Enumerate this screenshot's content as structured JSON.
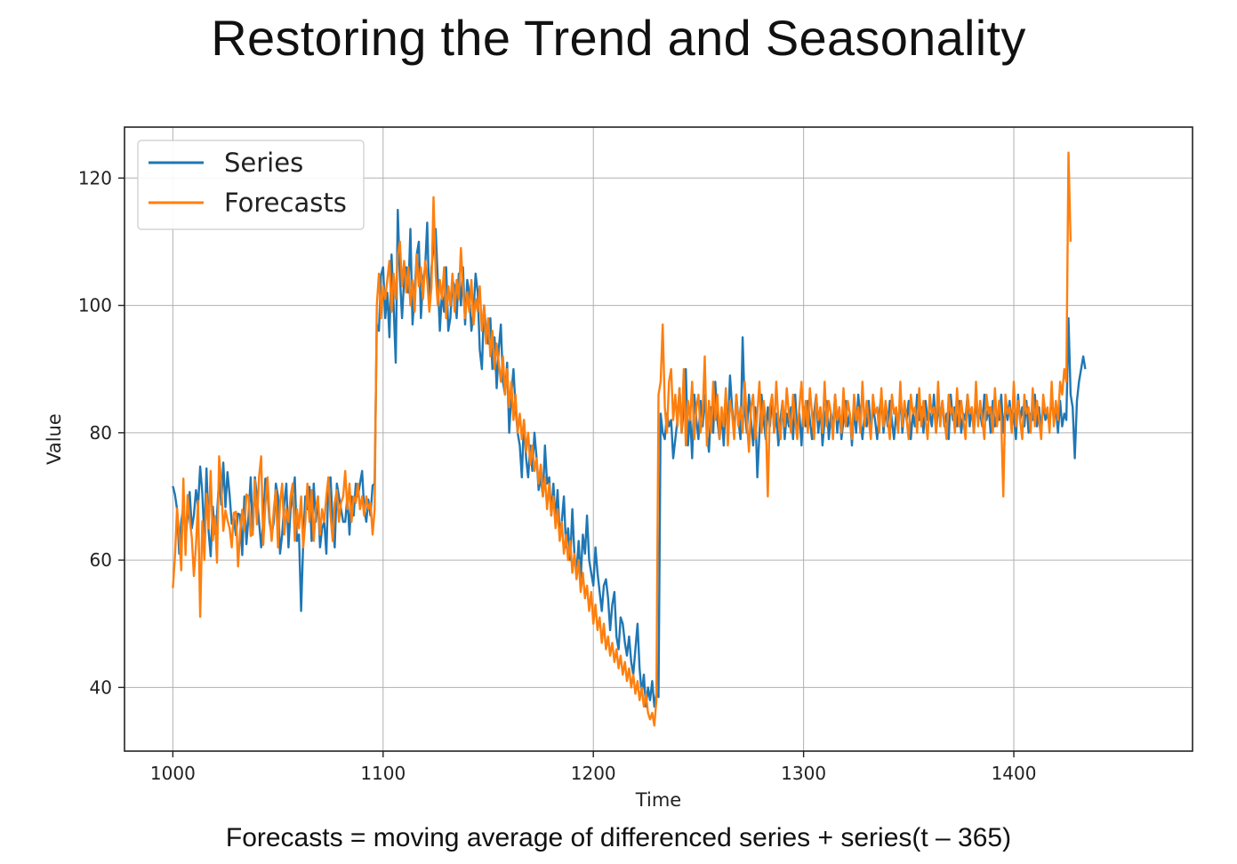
{
  "slide": {
    "title": "Restoring the Trend and Seasonality",
    "caption": "Forecasts = moving average of differenced series + series(t – 365)"
  },
  "chart_data": {
    "type": "line",
    "xlabel": "Time",
    "ylabel": "Value",
    "xlim": [
      977,
      1485
    ],
    "ylim": [
      30,
      128
    ],
    "xticks": [
      1000,
      1100,
      1200,
      1300,
      1400
    ],
    "yticks": [
      40,
      60,
      80,
      100,
      120
    ],
    "grid": true,
    "legend": {
      "placement": "top-left",
      "entries": [
        "Series",
        "Forecasts"
      ]
    },
    "series": [
      {
        "name": "Series",
        "color": "#1f77b4",
        "x_start": 1000,
        "x_step": 1,
        "values": [
          71.6,
          70.3,
          68.0,
          61.0,
          66.0,
          68.4,
          63.4,
          66.8,
          70.7,
          65.0,
          67.0,
          71.0,
          68.4,
          74.7,
          70.5,
          63.4,
          74.4,
          64.5,
          60.6,
          68.4,
          64.1,
          67.1,
          72.8,
          68.7,
          75.3,
          68.3,
          73.8,
          70.2,
          65.7,
          66.5,
          63.9,
          67.3,
          67.1,
          60.8,
          70.0,
          62.5,
          67.0,
          73.0,
          64.0,
          73.0,
          70.0,
          66.0,
          62.0,
          66.0,
          72.8,
          71.0,
          66.0,
          64.0,
          66.0,
          72.0,
          70.0,
          61.0,
          64.0,
          69.0,
          72.0,
          62.0,
          68.0,
          70.0,
          73.0,
          63.0,
          64.0,
          52.0,
          63.0,
          70.0,
          68.0,
          71.5,
          63.0,
          72.0,
          66.0,
          70.0,
          62.0,
          65.0,
          66.0,
          61.0,
          72.0,
          73.0,
          66.0,
          62.0,
          72.0,
          70.0,
          68.0,
          66.0,
          66.0,
          70.0,
          64.0,
          70.0,
          67.0,
          72.0,
          70.0,
          72.0,
          74.0,
          68.0,
          66.0,
          69.5,
          67.0,
          71.7,
          72.0,
          97.0,
          96.0,
          104.7,
          106.0,
          98.0,
          102.0,
          95.0,
          108.0,
          100.0,
          91.0,
          115.0,
          104.5,
          98.0,
          104.0,
          106.0,
          102.0,
          112.0,
          97.0,
          102.0,
          108.0,
          110.0,
          98.0,
          104.0,
          106.0,
          113.0,
          100.0,
          106.0,
          109.0,
          112.0,
          104.0,
          96.0,
          102.0,
          99.0,
          106.0,
          96.0,
          98.0,
          104.0,
          103.0,
          98.0,
          105.0,
          100.0,
          106.0,
          97.0,
          104.0,
          102.0,
          96.0,
          99.0,
          105.0,
          102.0,
          93.0,
          90.0,
          100.0,
          96.0,
          94.0,
          98.0,
          90.0,
          95.0,
          87.0,
          93.0,
          97.0,
          88.0,
          86.0,
          91.0,
          80.0,
          86.0,
          90.0,
          84.0,
          80.0,
          78.0,
          73.0,
          82.0,
          76.0,
          73.0,
          78.0,
          74.0,
          80.0,
          76.0,
          71.0,
          73.0,
          70.0,
          78.0,
          72.0,
          73.0,
          67.0,
          72.0,
          66.0,
          71.0,
          64.0,
          66.0,
          70.0,
          62.0,
          65.0,
          60.0,
          68.0,
          61.0,
          58.0,
          63.0,
          57.0,
          64.0,
          61.0,
          67.0,
          60.0,
          58.0,
          56.0,
          62.0,
          58.0,
          55.0,
          52.0,
          56.0,
          57.0,
          54.0,
          49.0,
          53.0,
          55.0,
          48.0,
          46.0,
          51.0,
          50.0,
          47.0,
          45.0,
          48.0,
          44.0,
          42.0,
          46.0,
          50.0,
          43.0,
          39.0,
          42.0,
          37.0,
          40.0,
          38.0,
          41.0,
          37.0,
          39.0,
          38.5,
          83.0,
          80.0,
          79.0,
          83.0,
          81.0,
          82.0,
          76.0,
          79.0,
          82.0,
          87.0,
          80.0,
          84.0,
          90.0,
          78.0,
          83.0,
          76.0,
          86.0,
          82.0,
          79.0,
          85.0,
          81.0,
          86.0,
          80.0,
          77.0,
          84.0,
          80.0,
          88.0,
          82.0,
          79.0,
          83.0,
          78.0,
          85.0,
          81.0,
          89.0,
          84.0,
          80.0,
          86.0,
          82.0,
          79.0,
          95.0,
          84.0,
          80.0,
          86.0,
          82.0,
          78.0,
          84.0,
          73.0,
          80.0,
          86.0,
          82.0,
          79.0,
          84.0,
          81.0,
          86.0,
          80.0,
          83.0,
          78.0,
          82.0,
          85.0,
          79.0,
          83.0,
          81.0,
          84.0,
          79.0,
          86.0,
          80.0,
          83.0,
          78.0,
          84.0,
          81.0,
          85.0,
          82.0,
          79.0,
          83.0,
          86.0,
          80.0,
          84.0,
          78.0,
          82.0,
          85.0,
          79.0,
          83.0,
          81.0,
          86.0,
          80.0,
          84.0,
          79.0,
          82.0,
          85.0,
          81.0,
          83.0,
          78.0,
          84.0,
          80.0,
          86.0,
          82.0,
          79.0,
          83.0,
          81.0,
          85.0,
          80.0,
          84.0,
          82.0,
          79.0,
          83.0,
          86.0,
          80.0,
          84.0,
          81.0,
          85.0,
          82.0,
          79.0,
          83.0,
          81.0,
          86.0,
          80.0,
          84.0,
          82.0,
          85.0,
          79.0,
          83.0,
          81.0,
          86.0,
          82.0,
          84.0,
          80.0,
          85.0,
          82.0,
          83.0,
          81.0,
          86.0,
          80.0,
          84.0,
          82.0,
          85.0,
          81.0,
          83.0,
          79.0,
          86.0,
          82.0,
          84.0,
          81.0,
          85.0,
          80.0,
          83.0,
          82.0,
          86.0,
          81.0,
          84.0,
          80.0,
          85.0,
          82.0,
          83.0,
          81.0,
          86.0,
          82.0,
          84.0,
          80.0,
          85.0,
          81.0,
          83.0,
          82.0,
          86.0,
          80.0,
          84.0,
          82.0,
          85.0,
          81.0,
          83.0,
          79.0,
          86.0,
          82.0,
          84.0,
          81.0,
          85.0,
          80.0,
          83.0,
          82.0,
          86.0,
          81.0,
          84.0,
          80.0,
          85.0,
          82.0,
          83.0,
          81.0,
          86.0,
          82.0,
          84.0,
          80.0,
          85.0,
          81.0,
          83.0,
          82.0,
          98.0,
          86.0,
          84.0,
          76.0,
          85.0,
          88.0,
          90.0,
          92.0,
          90.0
        ]
      },
      {
        "name": "Forecasts",
        "color": "#ff7f0e",
        "x_start": 1000,
        "x_step": 1,
        "values": [
          55.6,
          60.5,
          68.1,
          64.0,
          58.4,
          72.8,
          60.8,
          70.2,
          66.5,
          63.5,
          57.5,
          62.4,
          69.3,
          51.1,
          66.1,
          60.0,
          70.4,
          65.0,
          74.0,
          63.1,
          66.9,
          59.6,
          76.3,
          72.0,
          64.6,
          67.8,
          66.3,
          65.0,
          62.0,
          67.4,
          67.6,
          59.0,
          64.4,
          67.9,
          64.6,
          70.3,
          70.0,
          63.8,
          64.0,
          72.6,
          65.6,
          73.1,
          76.3,
          62.4,
          68.8,
          73.0,
          67.0,
          63.0,
          68.0,
          71.0,
          62.0,
          69.0,
          72.0,
          64.0,
          68.0,
          66.0,
          70.0,
          72.0,
          63.0,
          68.0,
          65.0,
          70.0,
          62.0,
          66.0,
          72.0,
          66.0,
          71.0,
          63.0,
          68.0,
          70.0,
          64.0,
          68.0,
          66.0,
          70.0,
          73.0,
          67.0,
          63.0,
          69.0,
          71.0,
          66.0,
          69.0,
          70.0,
          74.0,
          68.0,
          72.0,
          66.0,
          70.0,
          69.0,
          72.0,
          68.0,
          70.0,
          67.0,
          70.0,
          68.0,
          69.0,
          64.0,
          68.0,
          100.0,
          105.0,
          98.0,
          103.0,
          101.0,
          104.0,
          107.0,
          99.0,
          105.0,
          101.0,
          108.0,
          110.0,
          103.0,
          107.0,
          102.0,
          106.0,
          100.0,
          104.0,
          99.0,
          108.0,
          103.0,
          106.0,
          101.0,
          107.0,
          104.0,
          99.0,
          103.0,
          117.0,
          105.0,
          100.0,
          104.0,
          101.0,
          106.0,
          98.0,
          103.0,
          100.0,
          105.0,
          99.0,
          104.0,
          101.0,
          109.0,
          103.0,
          98.0,
          102.0,
          99.0,
          104.0,
          97.0,
          101.0,
          99.0,
          103.0,
          96.0,
          100.0,
          94.0,
          98.0,
          92.0,
          96.0,
          90.0,
          94.0,
          91.0,
          88.0,
          92.0,
          86.0,
          90.0,
          84.0,
          88.0,
          82.0,
          86.0,
          80.0,
          83.0,
          79.0,
          82.0,
          77.0,
          80.0,
          75.0,
          78.0,
          74.0,
          76.0,
          72.0,
          75.0,
          70.0,
          73.0,
          68.0,
          72.0,
          67.0,
          70.0,
          65.0,
          68.0,
          63.0,
          66.0,
          61.0,
          64.0,
          60.0,
          63.0,
          58.0,
          61.0,
          57.0,
          60.0,
          55.0,
          58.0,
          54.0,
          56.0,
          52.0,
          55.0,
          50.0,
          53.0,
          49.0,
          51.0,
          47.0,
          50.0,
          46.0,
          48.0,
          45.0,
          47.0,
          44.0,
          46.0,
          43.0,
          45.0,
          42.0,
          44.0,
          41.0,
          43.0,
          40.0,
          42.0,
          39.0,
          41.0,
          38.0,
          40.0,
          37.0,
          39.0,
          36.0,
          35.0,
          36.0,
          34.0,
          38.0,
          86.0,
          88.0,
          97.0,
          84.0,
          80.0,
          88.0,
          90.0,
          82.0,
          86.0,
          81.0,
          87.0,
          80.0,
          90.0,
          78.0,
          85.0,
          82.0,
          88.0,
          79.0,
          84.0,
          86.0,
          80.0,
          83.0,
          92.0,
          78.0,
          85.0,
          80.0,
          88.0,
          82.0,
          86.0,
          79.0,
          84.0,
          81.0,
          87.0,
          78.0,
          85.0,
          83.0,
          79.0,
          86.0,
          81.0,
          84.0,
          80.0,
          88.0,
          82.0,
          77.0,
          84.0,
          86.0,
          79.0,
          83.0,
          88.0,
          80.0,
          85.0,
          82.0,
          70.0,
          84.0,
          86.0,
          80.0,
          88.0,
          82.0,
          79.0,
          85.0,
          81.0,
          87.0,
          83.0,
          80.0,
          86.0,
          82.0,
          79.0,
          84.0,
          88.0,
          81.0,
          85.0,
          80.0,
          87.0,
          83.0,
          79.0,
          86.0,
          82.0,
          84.0,
          80.0,
          88.0,
          81.0,
          85.0,
          83.0,
          79.0,
          86.0,
          82.0,
          84.0,
          80.0,
          87.0,
          81.0,
          85.0,
          83.0,
          79.0,
          86.0,
          82.0,
          84.0,
          80.0,
          88.0,
          81.0,
          85.0,
          82.0,
          79.0,
          86.0,
          83.0,
          84.0,
          80.0,
          87.0,
          81.0,
          85.0,
          82.0,
          79.0,
          86.0,
          83.0,
          84.0,
          80.0,
          88.0,
          81.0,
          85.0,
          82.0,
          79.0,
          86.0,
          83.0,
          84.0,
          80.0,
          87.0,
          81.0,
          85.0,
          82.0,
          79.0,
          86.0,
          83.0,
          84.0,
          80.0,
          88.0,
          81.0,
          85.0,
          82.0,
          79.0,
          86.0,
          83.0,
          84.0,
          80.0,
          87.0,
          81.0,
          85.0,
          82.0,
          79.0,
          86.0,
          83.0,
          84.0,
          80.0,
          88.0,
          81.0,
          85.0,
          82.0,
          79.0,
          86.0,
          83.0,
          84.0,
          80.0,
          87.0,
          81.0,
          85.0,
          82.0,
          70.0,
          86.0,
          83.0,
          84.0,
          80.0,
          88.0,
          81.0,
          85.0,
          82.0,
          79.0,
          86.0,
          83.0,
          84.0,
          80.0,
          87.0,
          81.0,
          85.0,
          82.0,
          79.0,
          86.0,
          83.0,
          84.0,
          80.0,
          88.0,
          81.0,
          85.0,
          82.0,
          88.0,
          86.0,
          90.0,
          88.0,
          124.0,
          110.0
        ]
      }
    ]
  }
}
